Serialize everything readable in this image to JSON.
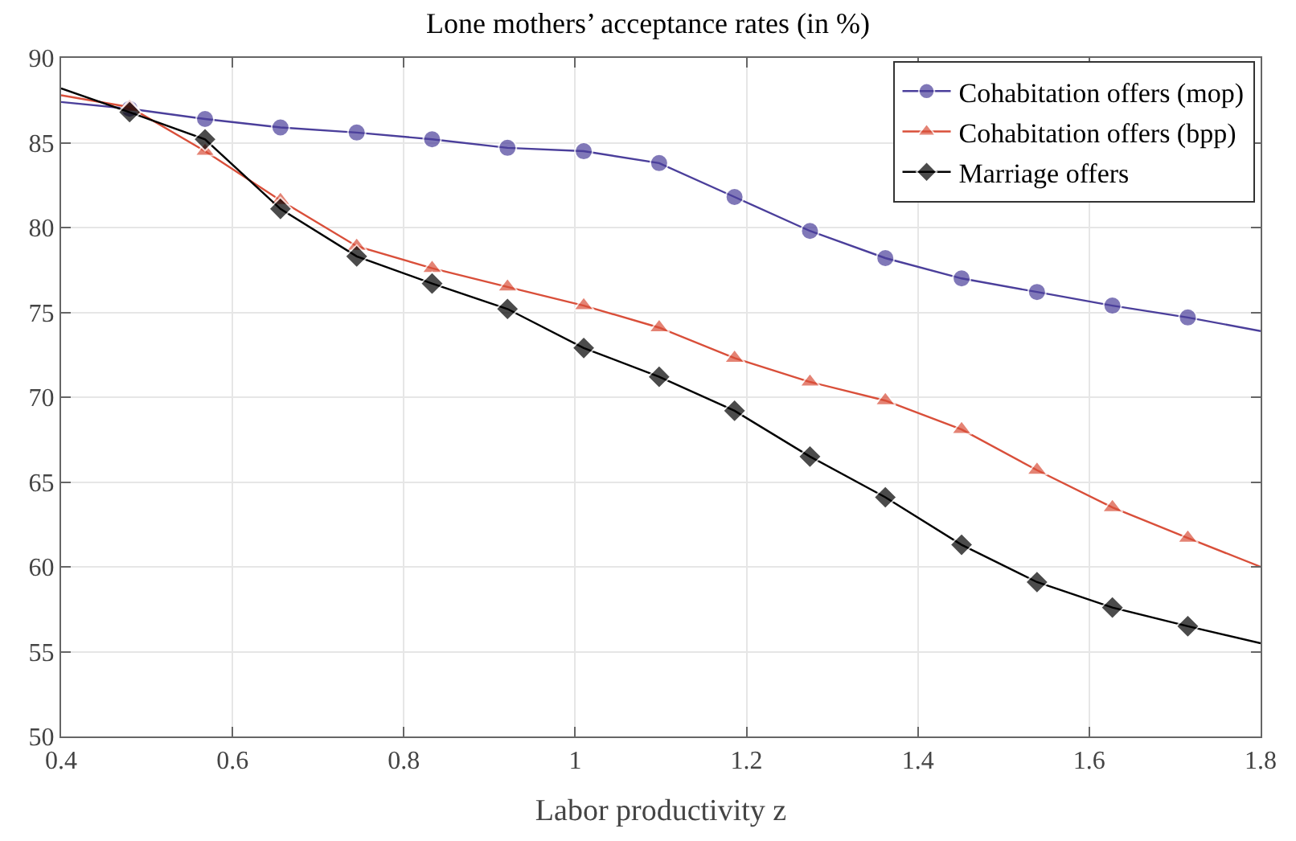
{
  "chart_data": {
    "type": "line",
    "title": "Lone mothers’ acceptance rates (in %)",
    "xlabel": "Labor productivity z",
    "x": [
      0.4,
      0.48,
      0.568,
      0.656,
      0.745,
      0.833,
      0.921,
      1.01,
      1.098,
      1.186,
      1.274,
      1.362,
      1.451,
      1.539,
      1.627,
      1.715,
      1.8
    ],
    "series": [
      {
        "name": "Cohabitation offers (mop)",
        "color": "#4b3f9b",
        "marker": "circle",
        "values": [
          87.4,
          87.0,
          86.4,
          85.9,
          85.6,
          85.2,
          84.7,
          84.5,
          83.8,
          81.8,
          79.8,
          78.2,
          77.0,
          76.2,
          75.4,
          74.7,
          73.9
        ]
      },
      {
        "name": "Cohabitation offers (bpp)",
        "color": "#d94f3a",
        "marker": "triangle",
        "values": [
          87.8,
          87.1,
          84.5,
          81.6,
          78.9,
          77.6,
          76.5,
          75.4,
          74.1,
          72.3,
          70.9,
          69.8,
          68.1,
          65.7,
          63.5,
          61.7,
          60.0
        ]
      },
      {
        "name": "Marriage offers",
        "color": "#000000",
        "marker": "diamond",
        "values": [
          88.2,
          86.8,
          85.2,
          81.1,
          78.3,
          76.7,
          75.2,
          72.9,
          71.2,
          69.2,
          66.5,
          64.1,
          61.3,
          59.1,
          57.6,
          56.5,
          55.5
        ]
      }
    ],
    "xlim": [
      0.4,
      1.8
    ],
    "xticks": [
      0.4,
      0.6,
      0.8,
      1,
      1.2,
      1.4,
      1.6,
      1.8
    ],
    "ylim": [
      50,
      90
    ],
    "yticks": [
      50,
      55,
      60,
      65,
      70,
      75,
      80,
      85,
      90
    ],
    "grid": true,
    "legend": "top right",
    "line_style": "solid"
  }
}
